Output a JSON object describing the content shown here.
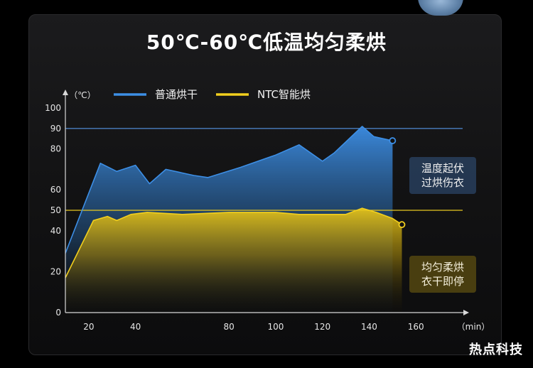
{
  "title": "50℃-60℃低温均匀柔烘",
  "watermark": "热点科技",
  "colors": {
    "blue": "#3d8fe6",
    "yellow": "#f2cf1e",
    "ref_blue": "#4a7fc0",
    "ref_yellow": "#e8c820"
  },
  "callouts": {
    "blue": [
      "温度起伏",
      "过烘伤衣"
    ],
    "yellow": [
      "均匀柔烘",
      "衣干即停"
    ]
  },
  "chart_data": {
    "type": "area",
    "xlabel": "（min）",
    "ylabel": "（℃）",
    "xlim": [
      10,
      180
    ],
    "ylim": [
      0,
      100
    ],
    "x_ticks": [
      20,
      40,
      80,
      100,
      120,
      140,
      160
    ],
    "y_ticks": [
      0,
      20,
      40,
      50,
      60,
      80,
      90,
      100
    ],
    "highlight_y_ticks": [
      90,
      50
    ],
    "reference_lines": [
      90,
      50
    ],
    "legend": [
      "普通烘干",
      "NTC智能烘"
    ],
    "series": [
      {
        "name": "普通烘干",
        "color": "#3d8fe6",
        "points": [
          [
            10,
            29
          ],
          [
            25,
            73
          ],
          [
            32,
            69
          ],
          [
            40,
            72
          ],
          [
            46,
            63
          ],
          [
            53,
            70
          ],
          [
            65,
            67
          ],
          [
            71,
            66
          ],
          [
            85,
            71
          ],
          [
            100,
            77
          ],
          [
            110,
            82
          ],
          [
            120,
            74
          ],
          [
            125,
            78
          ],
          [
            137,
            91
          ],
          [
            142,
            86
          ],
          [
            150,
            84
          ]
        ]
      },
      {
        "name": "NTC智能烘",
        "color": "#f2cf1e",
        "points": [
          [
            10,
            17
          ],
          [
            22,
            45
          ],
          [
            28,
            47
          ],
          [
            32,
            45
          ],
          [
            38,
            48
          ],
          [
            45,
            49
          ],
          [
            60,
            48
          ],
          [
            80,
            49
          ],
          [
            100,
            49
          ],
          [
            110,
            48
          ],
          [
            118,
            48
          ],
          [
            130,
            48
          ],
          [
            137,
            51
          ],
          [
            143,
            49
          ],
          [
            150,
            46
          ],
          [
            154,
            43
          ]
        ]
      }
    ]
  }
}
